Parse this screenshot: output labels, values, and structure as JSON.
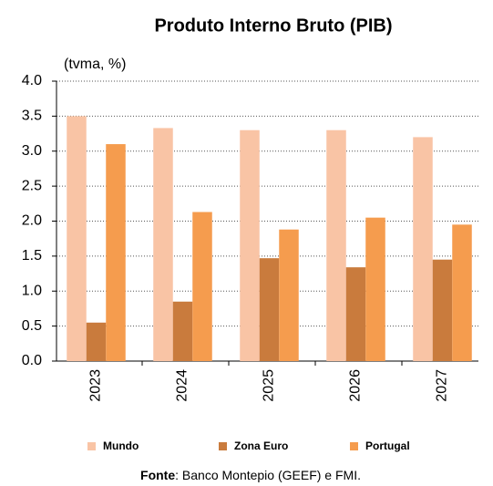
{
  "chart_data": {
    "type": "bar",
    "title": "Produto Interno Bruto (PIB)",
    "y_label": "(tvma, %)",
    "categories": [
      "2023",
      "2024",
      "2025",
      "2026",
      "2027"
    ],
    "series": [
      {
        "name": "Mundo",
        "color": "#f9c4a5",
        "values": [
          3.5,
          3.33,
          3.3,
          3.3,
          3.2
        ]
      },
      {
        "name": "Zona Euro",
        "color": "#c97b3d",
        "values": [
          0.55,
          0.85,
          1.47,
          1.34,
          1.45
        ]
      },
      {
        "name": "Portugal",
        "color": "#f59c4e",
        "values": [
          3.1,
          2.13,
          1.88,
          2.05,
          1.95
        ]
      }
    ],
    "ylim": [
      0,
      4
    ],
    "yticks": [
      {
        "value": 0,
        "label": "0.0"
      },
      0.5,
      {
        "value": 1,
        "label": "1.0"
      },
      1.5,
      {
        "value": 2,
        "label": "2.0"
      },
      2.5,
      {
        "value": 3,
        "label": "3.0"
      },
      3.5,
      {
        "value": 4,
        "label": "4.0"
      }
    ],
    "grid": true,
    "legend": "bottom",
    "source_label": "Fonte",
    "source_text": ": Banco Montepio (GEEF) e FMI."
  }
}
